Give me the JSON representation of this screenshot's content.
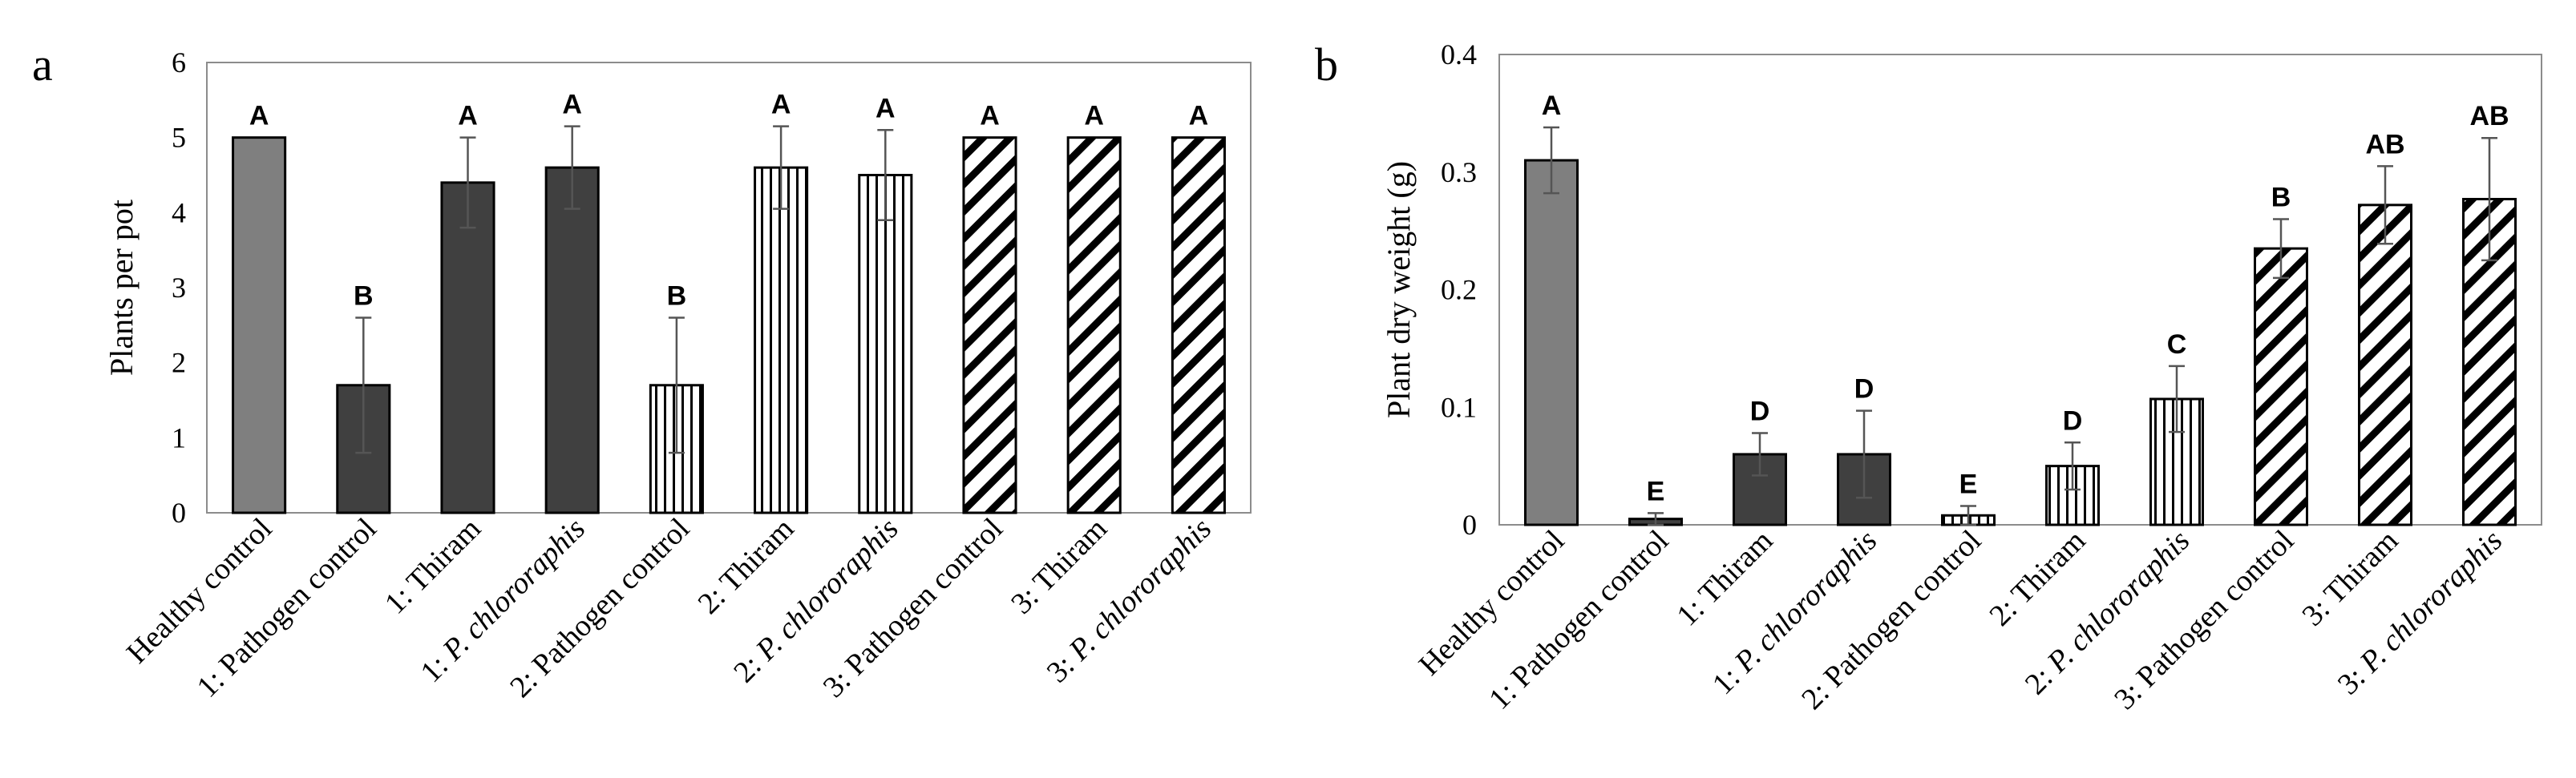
{
  "chart_data": [
    {
      "panel": "a",
      "type": "bar",
      "ylabel": "Plants per pot",
      "ylim": [
        0,
        6
      ],
      "yticks": [
        0,
        1,
        2,
        3,
        4,
        5,
        6
      ],
      "categories": [
        {
          "prefix": "",
          "name": "Healthy control",
          "italic": ""
        },
        {
          "prefix": "1: ",
          "name": "Pathogen control",
          "italic": ""
        },
        {
          "prefix": "1: ",
          "name": "Thiram",
          "italic": ""
        },
        {
          "prefix": "1: ",
          "name": "",
          "italic": "P. chlororaphis"
        },
        {
          "prefix": "2: ",
          "name": "Pathogen control",
          "italic": ""
        },
        {
          "prefix": "2: ",
          "name": "Thiram",
          "italic": ""
        },
        {
          "prefix": "2: ",
          "name": "",
          "italic": "P. chlororaphis"
        },
        {
          "prefix": "3: ",
          "name": "Pathogen control",
          "italic": ""
        },
        {
          "prefix": "3: ",
          "name": "Thiram",
          "italic": ""
        },
        {
          "prefix": "3: ",
          "name": "",
          "italic": "P. chlororaphis"
        }
      ],
      "values": [
        5.0,
        1.7,
        4.4,
        4.6,
        1.7,
        4.6,
        4.5,
        5.0,
        5.0,
        5.0
      ],
      "errors": [
        0,
        0.9,
        0.6,
        0.55,
        0.9,
        0.55,
        0.6,
        0,
        0,
        0
      ],
      "letters": [
        "A",
        "B",
        "A",
        "A",
        "B",
        "A",
        "A",
        "A",
        "A",
        "A"
      ],
      "fills": [
        "grey",
        "dark",
        "dark",
        "dark",
        "vstripe",
        "vstripe",
        "vstripe",
        "diag",
        "diag",
        "diag"
      ]
    },
    {
      "panel": "b",
      "type": "bar",
      "ylabel": "Plant dry weight (g)",
      "ylim": [
        0,
        0.4
      ],
      "yticks": [
        0,
        0.1,
        0.2,
        0.3,
        0.4
      ],
      "categories": [
        {
          "prefix": "",
          "name": "Healthy control",
          "italic": ""
        },
        {
          "prefix": "1: ",
          "name": "Pathogen control",
          "italic": ""
        },
        {
          "prefix": "1: ",
          "name": "Thiram",
          "italic": ""
        },
        {
          "prefix": "1: ",
          "name": "",
          "italic": "P. chlororaphis"
        },
        {
          "prefix": "2: ",
          "name": "Pathogen control",
          "italic": ""
        },
        {
          "prefix": "2: ",
          "name": "Thiram",
          "italic": ""
        },
        {
          "prefix": "2: ",
          "name": "",
          "italic": "P. chlororaphis"
        },
        {
          "prefix": "3: ",
          "name": "Pathogen control",
          "italic": ""
        },
        {
          "prefix": "3: ",
          "name": "Thiram",
          "italic": ""
        },
        {
          "prefix": "3: ",
          "name": "",
          "italic": "P. chlororaphis"
        }
      ],
      "values": [
        0.31,
        0.005,
        0.06,
        0.06,
        0.008,
        0.05,
        0.107,
        0.235,
        0.272,
        0.277
      ],
      "errors": [
        0.028,
        0.005,
        0.018,
        0.037,
        0.008,
        0.02,
        0.028,
        0.025,
        0.033,
        0.052
      ],
      "letters": [
        "A",
        "E",
        "D",
        "D",
        "E",
        "D",
        "C",
        "B",
        "AB",
        "AB"
      ],
      "fills": [
        "grey",
        "dark",
        "dark",
        "dark",
        "vstripe",
        "vstripe",
        "vstripe",
        "diag",
        "diag",
        "diag"
      ]
    }
  ]
}
